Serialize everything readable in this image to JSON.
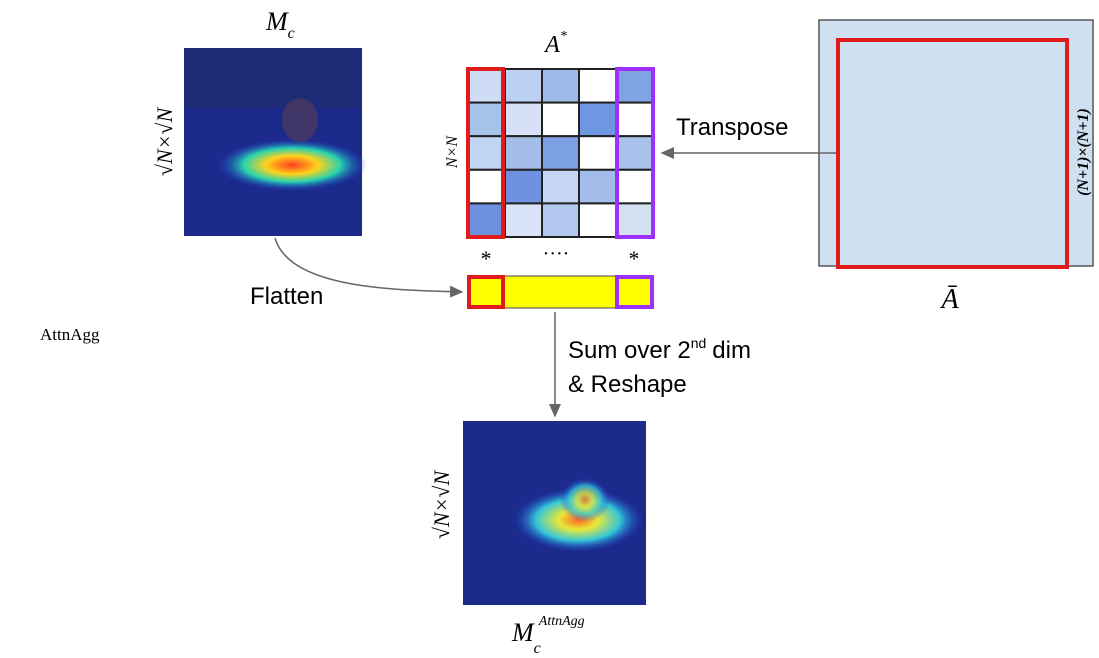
{
  "caption": "AttnAgg",
  "input_map": {
    "symbol": "M",
    "subscript": "c",
    "size_label": "√N×√N"
  },
  "attention_matrix": {
    "symbol": "A",
    "superscript": "*",
    "size_label": "N×N"
  },
  "full_matrix": {
    "symbol": "Ā",
    "size_label": "(N+1)×(N+1)"
  },
  "vector_markers": [
    "*",
    "····",
    "*"
  ],
  "edges": {
    "transpose": "Transpose",
    "flatten": "Flatten",
    "sum": {
      "text": "Sum over 2",
      "superscript": "nd",
      "rest": "dim",
      "line2": "& Reshape"
    }
  },
  "output_map": {
    "symbol": "M",
    "subscript": "c",
    "superscript": "AttnAgg",
    "size_label": "√N×√N"
  }
}
